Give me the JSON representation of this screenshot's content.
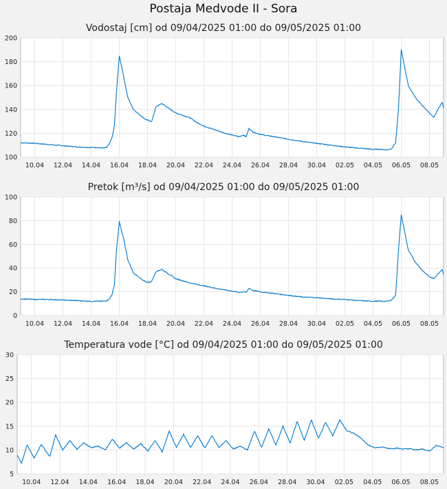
{
  "title": "Postaja Medvode II - Sora",
  "line_color": "#0077cc",
  "chart_data": [
    {
      "type": "line",
      "title": "Vodostaj [cm] od 09/04/2025 01:00 do 09/05/2025 01:00",
      "ylim": [
        100,
        200
      ],
      "yticks": [
        100,
        120,
        140,
        160,
        180,
        200
      ],
      "xlim": [
        0,
        30
      ],
      "xticks": [
        1,
        3,
        5,
        7,
        9,
        11,
        13,
        15,
        17,
        19,
        21,
        23,
        25,
        27,
        29
      ],
      "xticklabels": [
        "10.04",
        "12.04",
        "14.04",
        "16.04",
        "18.04",
        "20.04",
        "22.04",
        "24.04",
        "26.04",
        "28.04",
        "30.04",
        "02.05",
        "04.05",
        "06.05",
        "08.05"
      ],
      "grid": true,
      "x": [
        0,
        1,
        1.5,
        2,
        3,
        4,
        5,
        5.5,
        5.9,
        6.1,
        6.3,
        6.5,
        6.65,
        6.8,
        7,
        7.3,
        7.6,
        8,
        8.5,
        8.8,
        9,
        9.2,
        9.3,
        9.6,
        10,
        11,
        12,
        12.5,
        13,
        13.5,
        14,
        14.5,
        15,
        15.5,
        15.8,
        16,
        16.2,
        16.5,
        17,
        18,
        19,
        20,
        21,
        22,
        23,
        24,
        25,
        25.5,
        26,
        26.3,
        26.6,
        26.8,
        27,
        27.2,
        27.5,
        28,
        28.5,
        29,
        29.3,
        29.6,
        29.9,
        30
      ],
      "y": [
        112,
        111.5,
        111,
        110.5,
        109.5,
        108.5,
        108,
        108,
        107.5,
        108,
        111,
        117,
        126,
        155,
        185,
        168,
        150,
        140,
        135,
        132,
        131,
        130,
        130,
        142,
        145,
        137,
        133,
        129,
        126,
        124,
        122,
        120,
        118.5,
        117,
        118.5,
        117,
        124,
        121,
        119,
        117,
        115,
        113,
        111.5,
        110,
        108.5,
        107.5,
        106.5,
        106.5,
        106,
        107,
        112,
        140,
        190,
        178,
        160,
        150,
        143,
        137,
        133,
        140,
        146,
        141
      ]
    },
    {
      "type": "line",
      "title": "Pretok [m³/s] od 09/04/2025 01:00 do 09/05/2025 01:00",
      "ylim": [
        0,
        100
      ],
      "yticks": [
        0,
        20,
        40,
        60,
        80,
        100
      ],
      "xlim": [
        0,
        30
      ],
      "xticks": [
        1,
        3,
        5,
        7,
        9,
        11,
        13,
        15,
        17,
        19,
        21,
        23,
        25,
        27,
        29
      ],
      "xticklabels": [
        "10.04",
        "12.04",
        "14.04",
        "16.04",
        "18.04",
        "20.04",
        "22.04",
        "24.04",
        "26.04",
        "28.04",
        "30.04",
        "02.05",
        "04.05",
        "06.05",
        "08.05"
      ],
      "grid": true,
      "x": [
        0,
        1,
        2,
        3,
        4,
        5,
        5.5,
        5.9,
        6.1,
        6.3,
        6.5,
        6.65,
        6.8,
        7,
        7.3,
        7.6,
        8,
        8.5,
        8.8,
        9,
        9.2,
        9.3,
        9.6,
        10,
        11,
        12,
        13,
        14,
        15,
        15.5,
        15.8,
        16,
        16.2,
        16.5,
        17,
        18,
        19,
        20,
        21,
        22,
        23,
        24,
        25,
        25.5,
        26,
        26.3,
        26.6,
        26.8,
        27,
        27.2,
        27.5,
        28,
        28.5,
        29,
        29.3,
        29.6,
        29.9,
        30
      ],
      "y": [
        14,
        13.5,
        13.5,
        13,
        12.5,
        12,
        12,
        12,
        12.5,
        14,
        18,
        26,
        55,
        79,
        65,
        47,
        36,
        31,
        29,
        28,
        28,
        29,
        37,
        39,
        31,
        27.5,
        25,
        22.5,
        20.5,
        19.5,
        20,
        19.5,
        23,
        21,
        20,
        18.5,
        17,
        15.5,
        15,
        14,
        13.5,
        12.5,
        12,
        12,
        12,
        13,
        17,
        55,
        85,
        73,
        55,
        45,
        38,
        32.5,
        31,
        35,
        39,
        35
      ]
    },
    {
      "type": "line",
      "title": "Temperatura vode [°C] od 09/04/2025 01:00 do 09/05/2025 01:00",
      "ylim": [
        5,
        30
      ],
      "yticks": [
        5,
        10,
        15,
        20,
        25,
        30
      ],
      "xlim": [
        0,
        30
      ],
      "xticks": [
        1,
        3,
        5,
        7,
        9,
        11,
        13,
        15,
        17,
        19,
        21,
        23,
        25,
        27,
        29
      ],
      "xticklabels": [
        "10.04",
        "12.04",
        "14.04",
        "16.04",
        "18.04",
        "20.04",
        "22.04",
        "24.04",
        "26.04",
        "28.04",
        "30.04",
        "02.05",
        "04.05",
        "06.05",
        "08.05"
      ],
      "grid": true,
      "x": [
        0,
        0.3,
        0.7,
        1.2,
        1.7,
        2.3,
        2.7,
        3.2,
        3.7,
        4.2,
        4.7,
        5.2,
        5.7,
        6.2,
        6.7,
        7.2,
        7.7,
        8.2,
        8.7,
        9.2,
        9.7,
        10.2,
        10.7,
        11.2,
        11.7,
        12.2,
        12.7,
        13.2,
        13.7,
        14.2,
        14.7,
        15.2,
        15.7,
        16.2,
        16.7,
        17.2,
        17.7,
        18.2,
        18.7,
        19.2,
        19.7,
        20.2,
        20.7,
        21.2,
        21.7,
        22.2,
        22.7,
        23.2,
        23.7,
        24.2,
        24.7,
        25.2,
        25.7,
        26.2,
        26.7,
        27.2,
        27.6,
        28,
        28.5,
        29,
        29.5,
        30
      ],
      "y": [
        9,
        7.2,
        11,
        8.3,
        11.2,
        8.6,
        13.2,
        10,
        12,
        10.2,
        11.5,
        10.5,
        10.8,
        10,
        12.3,
        10.4,
        11.5,
        10.2,
        11.3,
        9.8,
        12,
        9.6,
        14,
        10.5,
        13.3,
        10.5,
        13,
        10.4,
        13,
        10.5,
        12,
        10.2,
        10.8,
        10,
        14,
        10.5,
        14.5,
        11,
        15,
        11.5,
        16,
        12,
        16.3,
        12.5,
        15.8,
        13,
        16.3,
        14,
        13.5,
        12.5,
        11,
        10.5,
        10.6,
        10.3,
        10.4,
        10.2,
        10.3,
        10,
        10.2,
        9.8,
        11,
        10.5
      ]
    }
  ]
}
